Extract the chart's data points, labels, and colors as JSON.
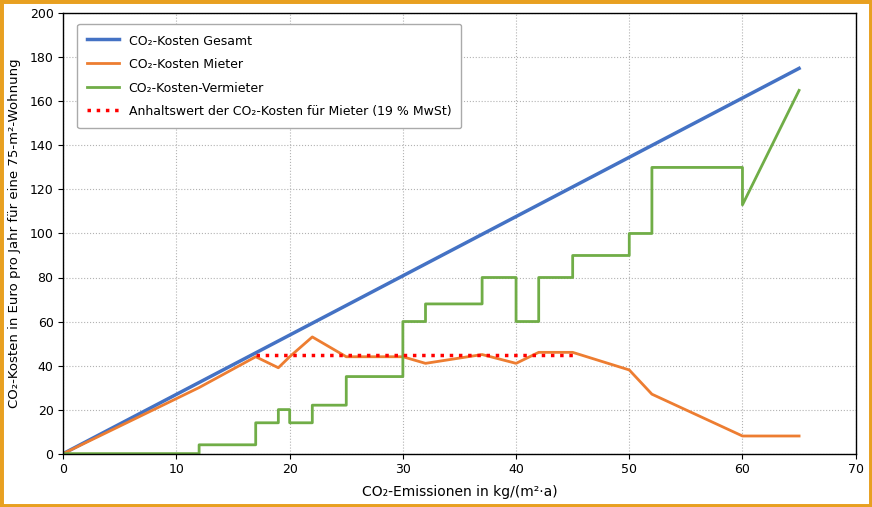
{
  "title": "",
  "xlabel": "CO₂-Emissionen in kg/(m²·a)",
  "ylabel": "CO₂-Kosten in Euro pro Jahr für eine 75-m²-Wohnung",
  "xlim": [
    0,
    70
  ],
  "ylim": [
    0,
    200
  ],
  "xticks": [
    0,
    10,
    20,
    30,
    40,
    50,
    60,
    70
  ],
  "yticks": [
    0,
    20,
    40,
    60,
    80,
    100,
    120,
    140,
    160,
    180,
    200
  ],
  "border_color": "#E8A020",
  "background_color": "#FFFFFF",
  "grid_color": "#AAAAAA",
  "blue_color": "#4472C4",
  "orange_color": "#ED7D31",
  "green_color": "#70AD47",
  "red_color": "#FF0000",
  "blue_label": "CO₂-Kosten Gesamt",
  "orange_label": "CO₂-Kosten Mieter",
  "green_label": "CO₂-Kosten-Vermieter",
  "red_label": "Anhaltswert der CO₂-Kosten für Mieter (19 % MwSt)",
  "blue_line": {
    "x": [
      0,
      65
    ],
    "y": [
      0,
      175
    ]
  },
  "orange_line": {
    "x": [
      0,
      12,
      12,
      17,
      17,
      19,
      19,
      20,
      20,
      22,
      22,
      25,
      25,
      30,
      30,
      32,
      32,
      37,
      37,
      40,
      40,
      42,
      42,
      45,
      45,
      50,
      50,
      52,
      52,
      60,
      60,
      65
    ],
    "y": [
      0,
      30,
      30,
      44,
      44,
      39,
      39,
      44,
      44,
      53,
      53,
      44,
      44,
      44,
      44,
      41,
      41,
      45,
      45,
      41,
      41,
      46,
      46,
      46,
      46,
      38,
      38,
      27,
      27,
      8,
      8,
      8
    ]
  },
  "green_line": {
    "x": [
      0,
      12,
      12,
      17,
      17,
      19,
      19,
      20,
      20,
      22,
      22,
      25,
      25,
      30,
      30,
      32,
      32,
      37,
      37,
      40,
      40,
      42,
      42,
      45,
      45,
      50,
      50,
      52,
      52,
      60,
      60,
      65
    ],
    "y": [
      0,
      0,
      4,
      4,
      14,
      14,
      20,
      20,
      14,
      14,
      22,
      22,
      35,
      35,
      60,
      60,
      68,
      68,
      80,
      80,
      60,
      60,
      80,
      80,
      90,
      90,
      100,
      100,
      130,
      130,
      113,
      165
    ]
  },
  "red_line": {
    "x": [
      17,
      45
    ],
    "y": [
      45,
      45
    ]
  }
}
